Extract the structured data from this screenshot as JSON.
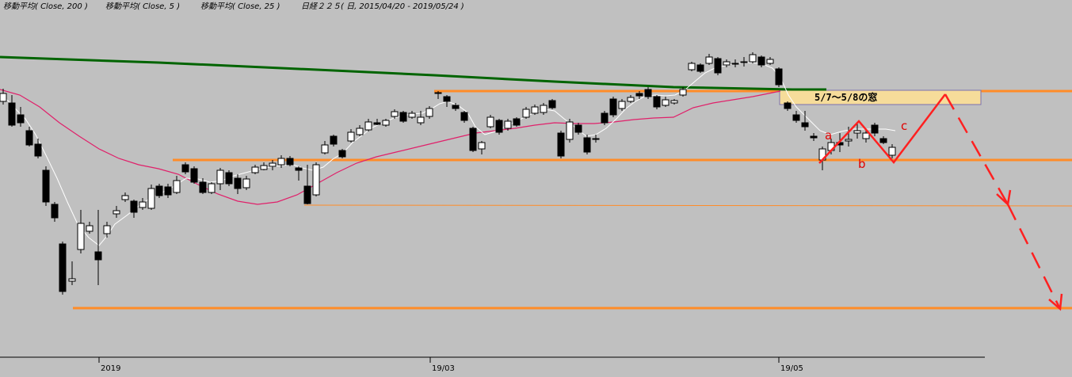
{
  "header": {
    "indicators": [
      "移動平均( Close, 200 )",
      "移動平均( Close, 5 )",
      "移動平均( Close, 25 )"
    ],
    "symbol_info": "日経２２５( 日, 2015/04/20 - 2019/05/24 )"
  },
  "chart_data": {
    "type": "candlestick",
    "x_tick_labels": [
      "2019",
      "19/03",
      "19/05"
    ],
    "annotations": {
      "gap_label": "5/7～5/8の窓",
      "wave_labels": [
        "a",
        "b",
        "c"
      ]
    },
    "colors": {
      "ma200": "#006400",
      "ma25": "#e0206a",
      "ma5": "#ffffff",
      "horizontal_lines": "#ff8c28",
      "projection": "#ff2020",
      "gap_box": "#f6dc9a",
      "background": "#c0c0c0"
    }
  }
}
